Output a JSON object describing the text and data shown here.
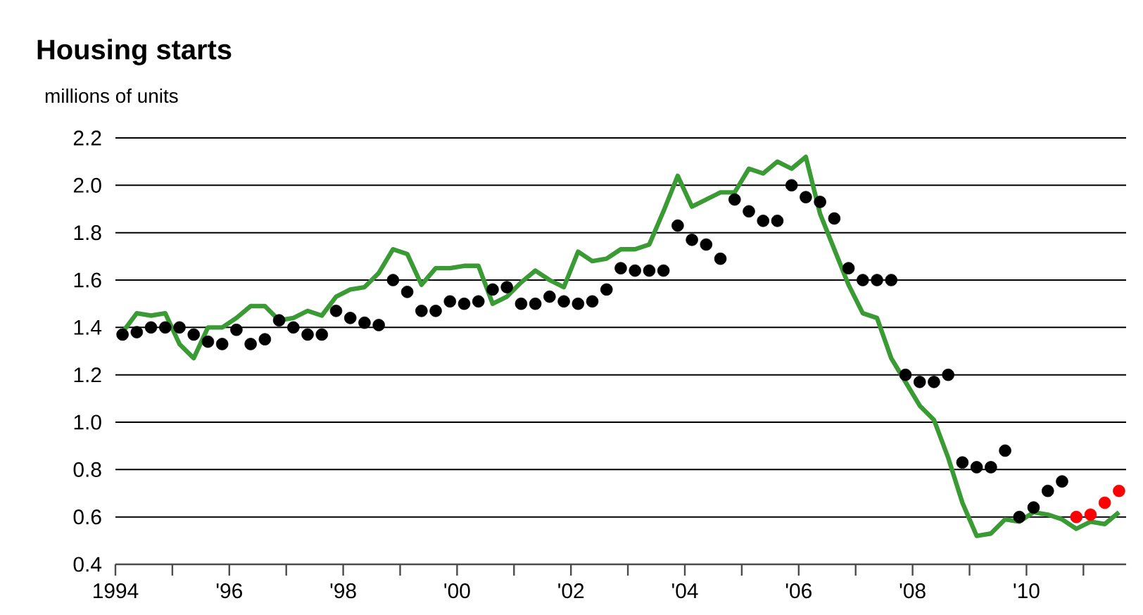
{
  "chart_data": {
    "type": "line",
    "title": "Housing starts",
    "ylabel": "millions of units",
    "x": [
      1994.125,
      1994.375,
      1994.625,
      1994.875,
      1995.125,
      1995.375,
      1995.625,
      1995.875,
      1996.125,
      1996.375,
      1996.625,
      1996.875,
      1997.125,
      1997.375,
      1997.625,
      1997.875,
      1998.125,
      1998.375,
      1998.625,
      1998.875,
      1999.125,
      1999.375,
      1999.625,
      1999.875,
      2000.125,
      2000.375,
      2000.625,
      2000.875,
      2001.125,
      2001.375,
      2001.625,
      2001.875,
      2002.125,
      2002.375,
      2002.625,
      2002.875,
      2003.125,
      2003.375,
      2003.625,
      2003.875,
      2004.125,
      2004.375,
      2004.625,
      2004.875,
      2005.125,
      2005.375,
      2005.625,
      2005.875,
      2006.125,
      2006.375,
      2006.625,
      2006.875,
      2007.125,
      2007.375,
      2007.625,
      2007.875,
      2008.125,
      2008.375,
      2008.625,
      2008.875,
      2009.125,
      2009.375,
      2009.625,
      2009.875,
      2010.125,
      2010.375,
      2010.625,
      2010.875,
      2011.125,
      2011.375,
      2011.625
    ],
    "series": [
      {
        "color": "#3a9a34",
        "line_style": "solid",
        "values": [
          1.38,
          1.46,
          1.45,
          1.46,
          1.33,
          1.27,
          1.4,
          1.4,
          1.44,
          1.49,
          1.49,
          1.43,
          1.44,
          1.47,
          1.45,
          1.53,
          1.56,
          1.57,
          1.63,
          1.73,
          1.71,
          1.58,
          1.65,
          1.65,
          1.66,
          1.66,
          1.5,
          1.53,
          1.59,
          1.64,
          1.6,
          1.57,
          1.72,
          1.68,
          1.69,
          1.73,
          1.73,
          1.75,
          1.89,
          2.04,
          1.91,
          1.94,
          1.97,
          1.97,
          2.07,
          2.05,
          2.1,
          2.07,
          2.12,
          1.88,
          1.73,
          1.58,
          1.46,
          1.44,
          1.27,
          1.17,
          1.07,
          1.01,
          0.85,
          0.66,
          0.52,
          0.53,
          0.59,
          0.58,
          0.62,
          0.61,
          0.59,
          0.55,
          0.58,
          0.57,
          0.62
        ]
      },
      {
        "type": "scatter",
        "color": "#000000",
        "marker": "circle",
        "values": [
          1.37,
          1.38,
          1.4,
          1.4,
          1.4,
          1.37,
          1.34,
          1.33,
          1.39,
          1.33,
          1.35,
          1.43,
          1.4,
          1.37,
          1.37,
          1.47,
          1.44,
          1.42,
          1.41,
          1.6,
          1.55,
          1.47,
          1.47,
          1.51,
          1.5,
          1.51,
          1.56,
          1.57,
          1.5,
          1.5,
          1.53,
          1.51,
          1.5,
          1.51,
          1.56,
          1.65,
          1.64,
          1.64,
          1.64,
          1.83,
          1.77,
          1.75,
          1.69,
          1.94,
          1.89,
          1.85,
          1.85,
          2.0,
          1.95,
          1.93,
          1.86,
          1.65,
          1.6,
          1.6,
          1.6,
          1.2,
          1.17,
          1.17,
          1.2,
          0.83,
          0.81,
          0.81,
          0.88,
          0.6,
          0.64,
          0.71,
          0.75,
          null,
          null,
          null,
          null
        ]
      },
      {
        "type": "scatter",
        "color": "#ff0000",
        "marker": "circle",
        "x": [
          2010.875,
          2011.125,
          2011.375,
          2011.625
        ],
        "values": [
          0.6,
          0.61,
          0.66,
          0.71
        ]
      }
    ],
    "xlim": [
      1994,
      2011.75
    ],
    "ylim": [
      0.4,
      2.2
    ],
    "xticks": [
      {
        "value": 1994,
        "label": "1994"
      },
      {
        "value": 1995,
        "label": null
      },
      {
        "value": 1996,
        "label": "'96"
      },
      {
        "value": 1997,
        "label": null
      },
      {
        "value": 1998,
        "label": "'98"
      },
      {
        "value": 1999,
        "label": null
      },
      {
        "value": 2000,
        "label": "'00"
      },
      {
        "value": 2001,
        "label": null
      },
      {
        "value": 2002,
        "label": "'02"
      },
      {
        "value": 2003,
        "label": null
      },
      {
        "value": 2004,
        "label": "'04"
      },
      {
        "value": 2005,
        "label": null
      },
      {
        "value": 2006,
        "label": "'06"
      },
      {
        "value": 2007,
        "label": null
      },
      {
        "value": 2008,
        "label": "'08"
      },
      {
        "value": 2009,
        "label": null
      },
      {
        "value": 2010,
        "label": "'10"
      },
      {
        "value": 2011,
        "label": null
      }
    ],
    "yticks": [
      0.4,
      0.6,
      0.8,
      {
        "value": 1,
        "label": "1.0"
      },
      1.2,
      1.4,
      1.6,
      1.8,
      {
        "value": 2,
        "label": "2.0"
      },
      2.2
    ],
    "grid": "y"
  }
}
